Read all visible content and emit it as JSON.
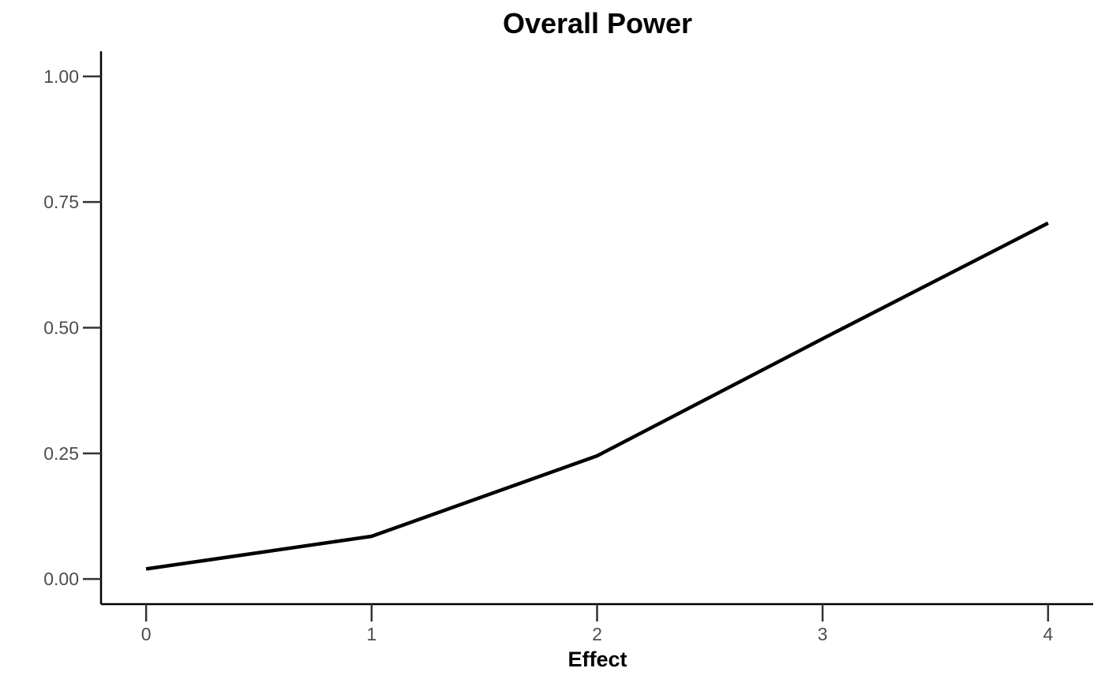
{
  "chart_data": {
    "type": "line",
    "title": "Overall Power",
    "xlabel": "Effect",
    "ylabel": "",
    "x": [
      0,
      1,
      2,
      3,
      4
    ],
    "series": [
      {
        "values": [
          0.02,
          0.085,
          0.245,
          0.478,
          0.708
        ]
      }
    ],
    "xticks": [
      0,
      1,
      2,
      3,
      4
    ],
    "xtick_labels": [
      "0",
      "1",
      "2",
      "3",
      "4"
    ],
    "yticks": [
      0,
      0.25,
      0.5,
      0.75,
      1
    ],
    "ytick_labels": [
      "0.00",
      "0.25",
      "0.50",
      "0.75",
      "1.00"
    ],
    "xlim": [
      -0.2,
      4.2
    ],
    "ylim": [
      -0.05,
      1.05
    ],
    "grid": false,
    "legend": "none",
    "colors": {
      "line": "#000000",
      "axis": "#000000",
      "tick_text": "#4d4d4d"
    }
  }
}
